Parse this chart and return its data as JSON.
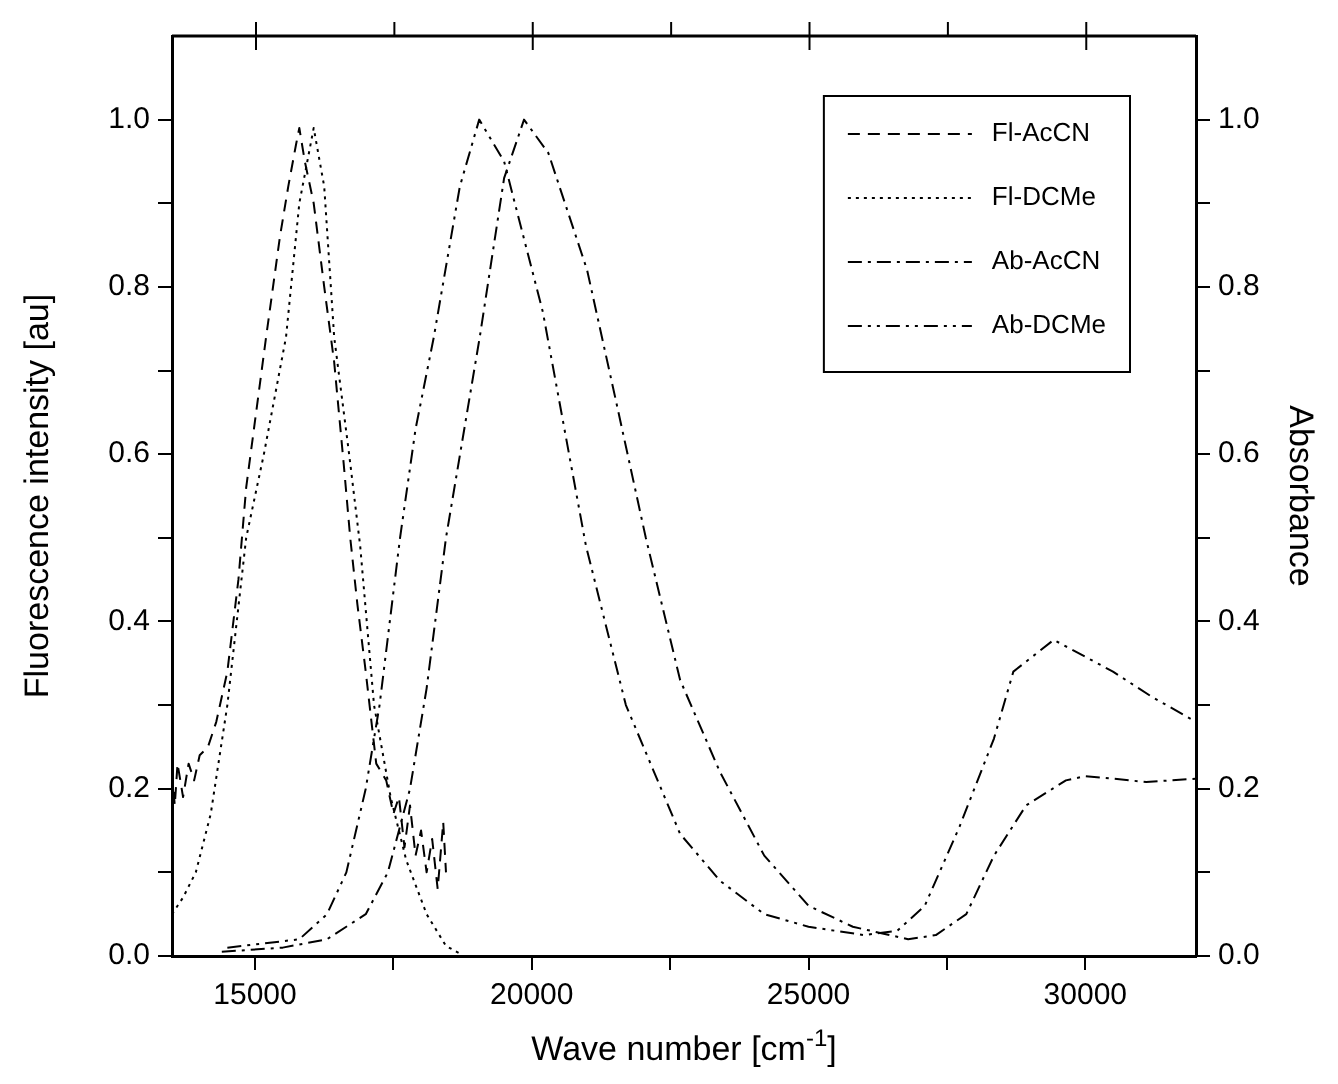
{
  "chart_data": {
    "type": "line",
    "xlabel": "Wave number [cm$^{-1}$]",
    "ylabel": "Fluorescence intensity [au]",
    "y2label": "Absorbance",
    "xlim": [
      13500,
      32000
    ],
    "xticks": [
      15000,
      {
        "value": 17500,
        "label": null
      },
      20000,
      {
        "value": 22500,
        "label": null
      },
      25000,
      {
        "value": 27500,
        "label": null
      },
      30000
    ],
    "ylim": [
      0,
      1.1
    ],
    "yticks": [
      {
        "value": 0,
        "label": "0.0"
      },
      {
        "value": 0.1,
        "label": null
      },
      {
        "value": 0.2,
        "label": "0.2"
      },
      {
        "value": 0.3,
        "label": null
      },
      {
        "value": 0.4,
        "label": "0.4"
      },
      {
        "value": 0.5,
        "label": null
      },
      {
        "value": 0.6,
        "label": "0.6"
      },
      {
        "value": 0.7,
        "label": null
      },
      {
        "value": 0.8,
        "label": "0.8"
      },
      {
        "value": 0.9,
        "label": null
      },
      {
        "value": 1,
        "label": "1.0"
      }
    ],
    "y2lim": [
      0,
      1.1
    ],
    "y2ticks": [
      {
        "value": 0,
        "label": "0.0"
      },
      {
        "value": 0.1,
        "label": null
      },
      {
        "value": 0.2,
        "label": "0.2"
      },
      {
        "value": 0.3,
        "label": null
      },
      {
        "value": 0.4,
        "label": "0.4"
      },
      {
        "value": 0.5,
        "label": null
      },
      {
        "value": 0.6,
        "label": "0.6"
      },
      {
        "value": 0.7,
        "label": null
      },
      {
        "value": 0.8,
        "label": "0.8"
      },
      {
        "value": 0.9,
        "label": null
      },
      {
        "value": 1,
        "label": "1.0"
      }
    ],
    "grid": false,
    "legend": "top right",
    "marker": "none",
    "series": [
      {
        "name": "Fl-AcCN",
        "color": "#000000",
        "line_style": "dashed",
        "x": [
          13500,
          13550,
          13600,
          13700,
          13800,
          13900,
          14000,
          14150,
          14300,
          14500,
          14700,
          14840,
          15000,
          15200,
          15450,
          15600,
          15740,
          15800,
          15900,
          16060,
          16250,
          16430,
          16600,
          16720,
          16850,
          17000,
          17190,
          17370,
          17500,
          17600,
          17700,
          17800,
          17900,
          18000,
          18100,
          18200,
          18300,
          18400,
          18450
        ],
        "values": [
          0.22,
          0.18,
          0.23,
          0.19,
          0.23,
          0.21,
          0.24,
          0.25,
          0.28,
          0.34,
          0.45,
          0.56,
          0.64,
          0.74,
          0.86,
          0.92,
          0.97,
          0.99,
          0.95,
          0.9,
          0.8,
          0.71,
          0.59,
          0.5,
          0.42,
          0.34,
          0.23,
          0.21,
          0.17,
          0.19,
          0.13,
          0.18,
          0.12,
          0.15,
          0.1,
          0.14,
          0.08,
          0.16,
          0.1
        ]
      },
      {
        "name": "Fl-DCMe",
        "color": "#000000",
        "line_style": "dotted",
        "x": [
          13500,
          13700,
          13930,
          14200,
          14500,
          14840,
          15160,
          15560,
          15800,
          16060,
          16250,
          16430,
          16700,
          16900,
          17150,
          17450,
          17730,
          18100,
          18450,
          18700
        ],
        "values": [
          0.05,
          0.07,
          0.1,
          0.17,
          0.3,
          0.5,
          0.6,
          0.74,
          0.9,
          0.99,
          0.92,
          0.74,
          0.6,
          0.49,
          0.3,
          0.19,
          0.115,
          0.05,
          0.012,
          0.003
        ]
      },
      {
        "name": "Ab-AcCN",
        "color": "#000000",
        "line_style": "dashdot",
        "x": [
          14400,
          15500,
          16300,
          17000,
          17400,
          17800,
          18100,
          18450,
          19060,
          19500,
          19860,
          20300,
          21000,
          21500,
          22060,
          22680,
          23400,
          24200,
          25000,
          25800,
          26800,
          27300,
          27850,
          28350,
          28930,
          29650,
          30000,
          30500,
          31100,
          32000
        ],
        "values": [
          0.005,
          0.01,
          0.02,
          0.05,
          0.1,
          0.2,
          0.32,
          0.5,
          0.74,
          0.93,
          1.0,
          0.96,
          0.82,
          0.67,
          0.5,
          0.33,
          0.22,
          0.12,
          0.06,
          0.035,
          0.02,
          0.025,
          0.05,
          0.12,
          0.18,
          0.21,
          0.215,
          0.212,
          0.208,
          0.212
        ]
      },
      {
        "name": "Ab-DCMe",
        "color": "#000000",
        "line_style": "dashdotdot",
        "x": [
          14500,
          15800,
          16300,
          16650,
          17000,
          17250,
          17620,
          17900,
          18230,
          18700,
          19050,
          19500,
          20200,
          20980,
          21700,
          22680,
          23400,
          24200,
          25000,
          26000,
          26600,
          27100,
          27730,
          28350,
          28700,
          29430,
          30500,
          31200,
          32000
        ],
        "values": [
          0.01,
          0.02,
          0.05,
          0.1,
          0.2,
          0.3,
          0.5,
          0.63,
          0.74,
          0.92,
          1.0,
          0.95,
          0.77,
          0.49,
          0.3,
          0.146,
          0.09,
          0.05,
          0.035,
          0.025,
          0.03,
          0.06,
          0.155,
          0.26,
          0.34,
          0.378,
          0.34,
          0.31,
          0.28
        ]
      }
    ]
  }
}
